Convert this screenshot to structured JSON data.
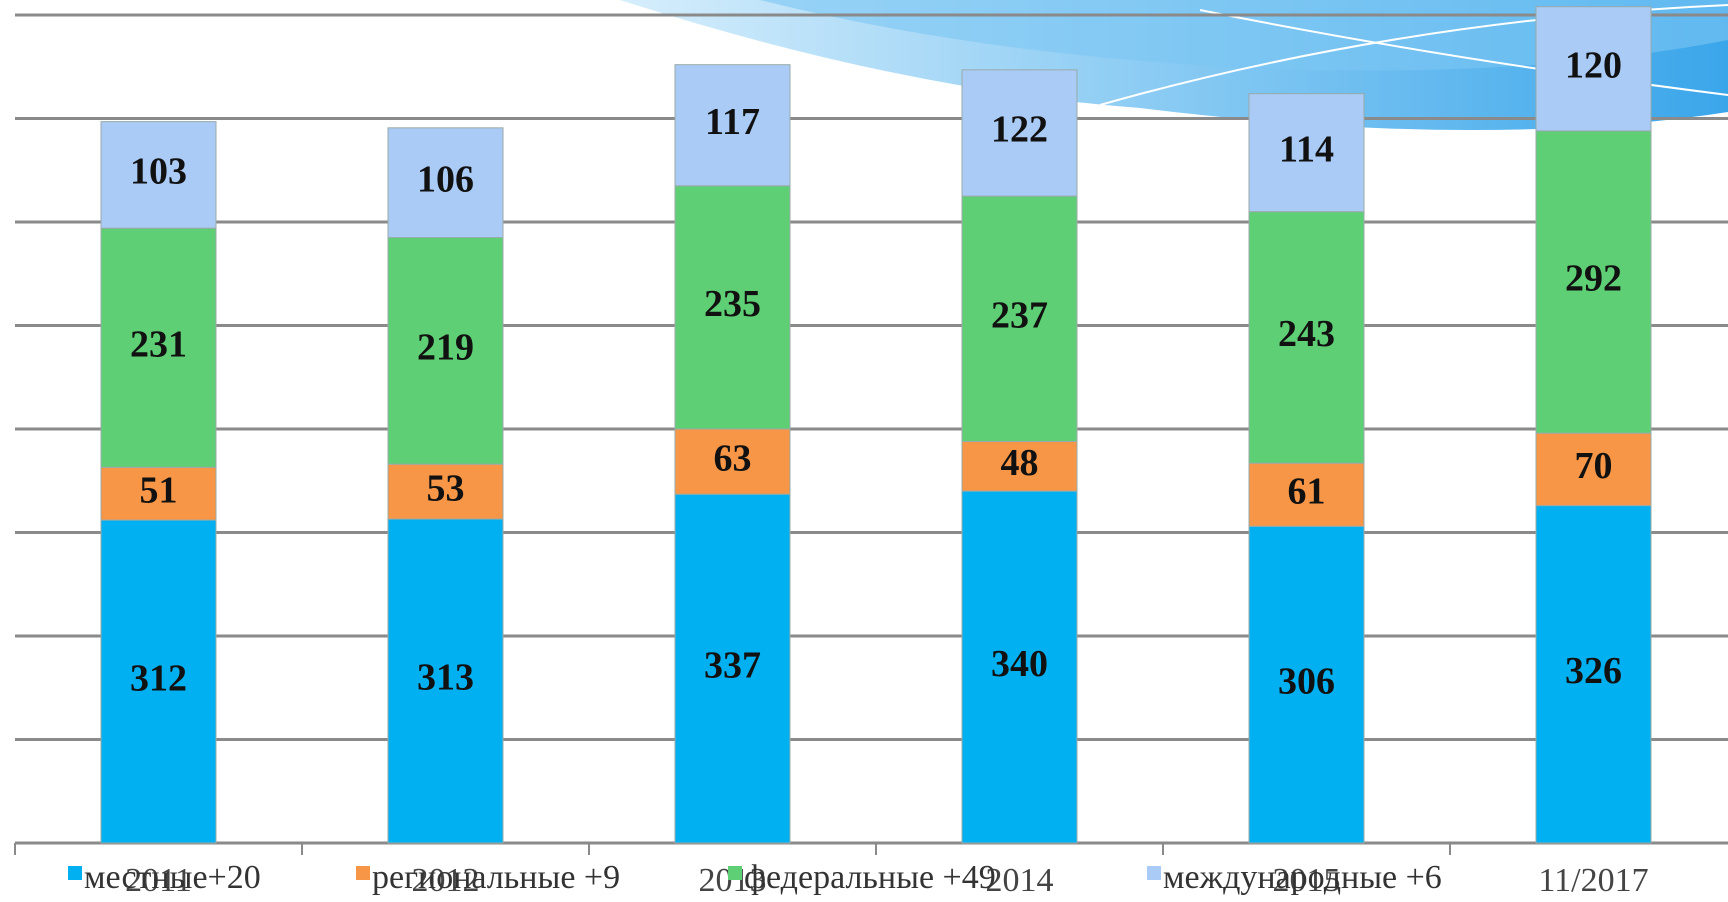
{
  "chart_data": {
    "type": "stacked_bar",
    "categories": [
      "2011",
      "2012",
      "2013",
      "2014",
      "2015",
      "11/2017"
    ],
    "series": [
      {
        "name": "местные+20",
        "color": "#00b0f0",
        "values": [
          312,
          313,
          337,
          340,
          306,
          326
        ]
      },
      {
        "name": "региональные +9",
        "color": "#f79646",
        "values": [
          51,
          53,
          63,
          48,
          61,
          70
        ]
      },
      {
        "name": "федеральные +49",
        "color": "#5ecf74",
        "values": [
          231,
          219,
          235,
          237,
          243,
          292
        ]
      },
      {
        "name": "международные +6",
        "color": "#a9cbf5",
        "values": [
          103,
          106,
          117,
          122,
          114,
          120
        ]
      }
    ],
    "ylim": [
      0,
      800
    ],
    "yticks": [
      0,
      100,
      200,
      300,
      400,
      500,
      600,
      700,
      800
    ],
    "grid": true
  }
}
